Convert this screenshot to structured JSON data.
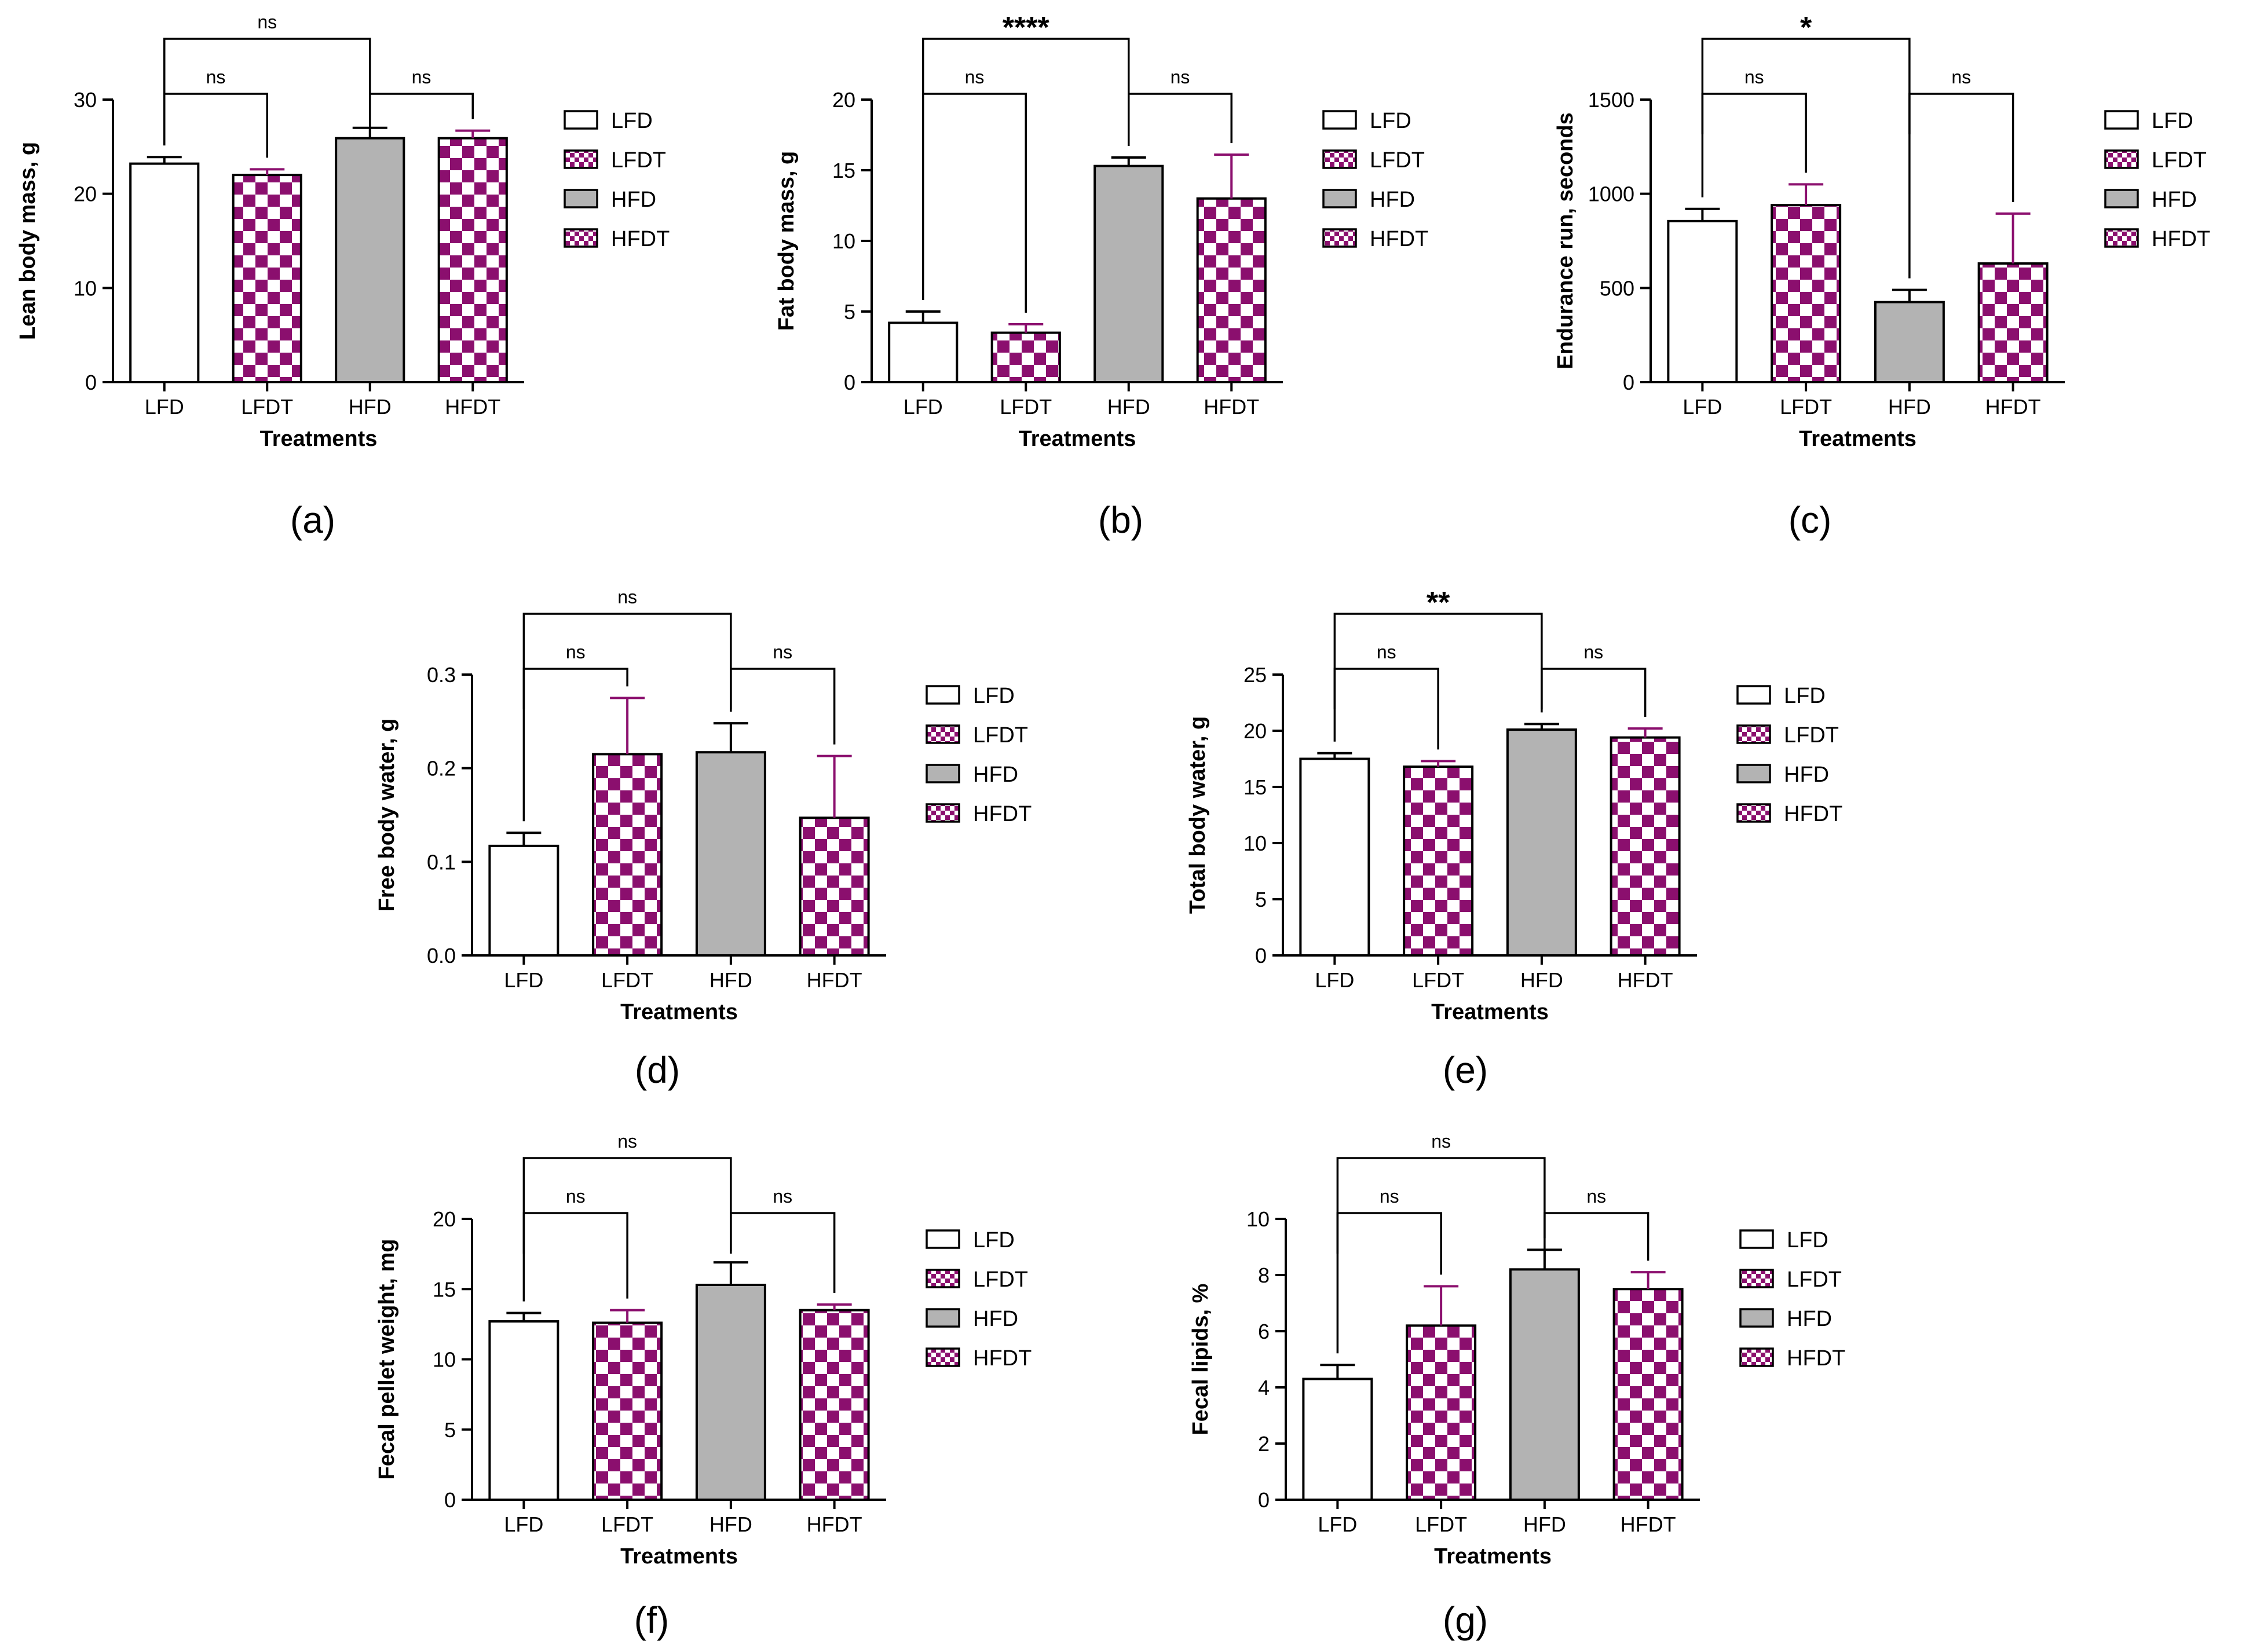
{
  "colors": {
    "lfd": "#ffffff",
    "lfdt": "#8b0f6e",
    "hfd": "#b3b3b3",
    "hfdt": "#8b0f6e",
    "axis": "#000000",
    "lfdt_error": "#8b0f6e"
  },
  "chart_data": [
    {
      "type": "bar",
      "panel": "(a)",
      "ylabel": "Lean body mass, g",
      "xlabel": "Treatments",
      "categories": [
        "LFD",
        "LFDT",
        "HFD",
        "HFDT"
      ],
      "values": [
        23.2,
        22.0,
        25.9,
        25.9
      ],
      "errors": [
        0.7,
        0.6,
        1.1,
        0.8
      ],
      "ylim": [
        0,
        30
      ],
      "yticks": [
        "0",
        "10",
        "20",
        "30"
      ],
      "legend": [
        "LFD",
        "LFDT",
        "HFD",
        "HFDT"
      ],
      "comparisons": [
        {
          "from": 0,
          "to": 2,
          "label": "ns",
          "level": 2
        },
        {
          "from": 0,
          "to": 1,
          "label": "ns",
          "level": 1
        },
        {
          "from": 2,
          "to": 3,
          "label": "ns",
          "level": 1
        }
      ]
    },
    {
      "type": "bar",
      "panel": "(b)",
      "ylabel": "Fat body mass, g",
      "xlabel": "Treatments",
      "categories": [
        "LFD",
        "LFDT",
        "HFD",
        "HFDT"
      ],
      "values": [
        4.2,
        3.5,
        15.3,
        13.0
      ],
      "errors": [
        0.8,
        0.6,
        0.6,
        3.1
      ],
      "ylim": [
        0,
        20
      ],
      "yticks": [
        "0",
        "5",
        "10",
        "15",
        "20"
      ],
      "legend": [
        "LFD",
        "LFDT",
        "HFD",
        "HFDT"
      ],
      "comparisons": [
        {
          "from": 0,
          "to": 2,
          "label": "****",
          "level": 2
        },
        {
          "from": 0,
          "to": 1,
          "label": "ns",
          "level": 1
        },
        {
          "from": 2,
          "to": 3,
          "label": "ns",
          "level": 1
        }
      ]
    },
    {
      "type": "bar",
      "panel": "(c)",
      "ylabel": "Endurance run, seconds",
      "xlabel": "Treatments",
      "categories": [
        "LFD",
        "LFDT",
        "HFD",
        "HFDT"
      ],
      "values": [
        855,
        940,
        425,
        630
      ],
      "errors": [
        65,
        110,
        65,
        265
      ],
      "ylim": [
        0,
        1500
      ],
      "yticks": [
        "0",
        "500",
        "1000",
        "1500"
      ],
      "legend": [
        "LFD",
        "LFDT",
        "HFD",
        "HFDT"
      ],
      "comparisons": [
        {
          "from": 0,
          "to": 2,
          "label": "*",
          "level": 2
        },
        {
          "from": 0,
          "to": 1,
          "label": "ns",
          "level": 1
        },
        {
          "from": 2,
          "to": 3,
          "label": "ns",
          "level": 1
        }
      ]
    },
    {
      "type": "bar",
      "panel": "(d)",
      "ylabel": "Free body water, g",
      "xlabel": "Treatments",
      "categories": [
        "LFD",
        "LFDT",
        "HFD",
        "HFDT"
      ],
      "values": [
        0.117,
        0.215,
        0.217,
        0.147
      ],
      "errors": [
        0.014,
        0.06,
        0.031,
        0.066
      ],
      "ylim": [
        0,
        0.3
      ],
      "yticks": [
        "0.0",
        "0.1",
        "0.2",
        "0.3"
      ],
      "legend": [
        "LFD",
        "LFDT",
        "HFD",
        "HFDT"
      ],
      "comparisons": [
        {
          "from": 0,
          "to": 2,
          "label": "ns",
          "level": 2
        },
        {
          "from": 0,
          "to": 1,
          "label": "ns",
          "level": 1
        },
        {
          "from": 2,
          "to": 3,
          "label": "ns",
          "level": 1
        }
      ]
    },
    {
      "type": "bar",
      "panel": "(e)",
      "ylabel": "Total body water, g",
      "xlabel": "Treatments",
      "categories": [
        "LFD",
        "LFDT",
        "HFD",
        "HFDT"
      ],
      "values": [
        17.5,
        16.8,
        20.1,
        19.4
      ],
      "errors": [
        0.5,
        0.5,
        0.5,
        0.8
      ],
      "ylim": [
        0,
        25
      ],
      "yticks": [
        "0",
        "5",
        "10",
        "15",
        "20",
        "25"
      ],
      "legend": [
        "LFD",
        "LFDT",
        "HFD",
        "HFDT"
      ],
      "comparisons": [
        {
          "from": 0,
          "to": 2,
          "label": "**",
          "level": 2
        },
        {
          "from": 0,
          "to": 1,
          "label": "ns",
          "level": 1
        },
        {
          "from": 2,
          "to": 3,
          "label": "ns",
          "level": 1
        }
      ]
    },
    {
      "type": "bar",
      "panel": "(f)",
      "ylabel": "Fecal pellet weight, mg",
      "xlabel": "Treatments",
      "categories": [
        "LFD",
        "LFDT",
        "HFD",
        "HFDT"
      ],
      "values": [
        12.7,
        12.6,
        15.3,
        13.5
      ],
      "errors": [
        0.6,
        0.9,
        1.6,
        0.4
      ],
      "ylim": [
        0,
        20
      ],
      "yticks": [
        "0",
        "5",
        "10",
        "15",
        "20"
      ],
      "legend": [
        "LFD",
        "LFDT",
        "HFD",
        "HFDT"
      ],
      "comparisons": [
        {
          "from": 0,
          "to": 2,
          "label": "ns",
          "level": 2
        },
        {
          "from": 0,
          "to": 1,
          "label": "ns",
          "level": 1
        },
        {
          "from": 2,
          "to": 3,
          "label": "ns",
          "level": 1
        }
      ]
    },
    {
      "type": "bar",
      "panel": "(g)",
      "ylabel": "Fecal lipids, %",
      "xlabel": "Treatments",
      "categories": [
        "LFD",
        "LFDT",
        "HFD",
        "HFDT"
      ],
      "values": [
        4.3,
        6.2,
        8.2,
        7.5
      ],
      "errors": [
        0.5,
        1.4,
        0.7,
        0.6
      ],
      "ylim": [
        0,
        10
      ],
      "yticks": [
        "0",
        "2",
        "4",
        "6",
        "8",
        "10"
      ],
      "legend": [
        "LFD",
        "LFDT",
        "HFD",
        "HFDT"
      ],
      "comparisons": [
        {
          "from": 0,
          "to": 2,
          "label": "ns",
          "level": 2
        },
        {
          "from": 0,
          "to": 1,
          "label": "ns",
          "level": 1
        },
        {
          "from": 2,
          "to": 3,
          "label": "ns",
          "level": 1
        }
      ]
    }
  ]
}
